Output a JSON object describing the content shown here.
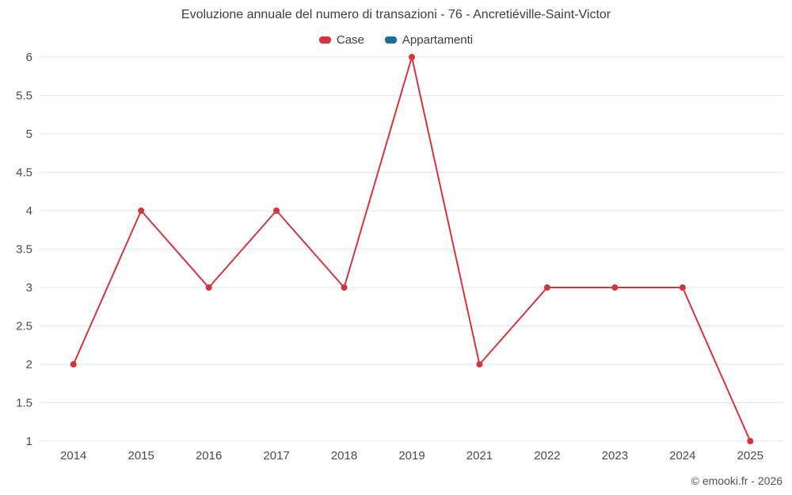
{
  "title": "Evoluzione annuale del numero di transazioni - 76 - Ancretiéville-Saint-Victor",
  "copyright": "© emooki.fr - 2026",
  "colors": {
    "grid": "#e6e6e6",
    "case_red": "#d8333c",
    "appartamenti_blue": "#1b6f9f",
    "text": "#3d3d3d",
    "tick_text": "#4a4a4a"
  },
  "chart_data": {
    "type": "line",
    "title": "Evoluzione annuale del numero di transazioni - 76 - Ancretiéville-Saint-Victor",
    "xlabel": "",
    "ylabel": "",
    "categories": [
      "2014",
      "2015",
      "2016",
      "2017",
      "2018",
      "2019",
      "2021",
      "2022",
      "2023",
      "2024",
      "2025"
    ],
    "series": [
      {
        "name": "Case",
        "color": "#d8333c",
        "values": [
          2,
          4,
          3,
          4,
          3,
          6,
          2,
          3,
          3,
          3,
          1
        ]
      },
      {
        "name": "Appartamenti",
        "color": "#1b6f9f",
        "values": []
      }
    ],
    "ylim": [
      1,
      6
    ],
    "y_ticks": [
      1,
      1.5,
      2,
      2.5,
      3,
      3.5,
      4,
      4.5,
      5,
      5.5,
      6
    ],
    "grid": "horizontal",
    "legend_position": "top",
    "legend_entries": [
      "Case",
      "Appartamenti"
    ]
  }
}
